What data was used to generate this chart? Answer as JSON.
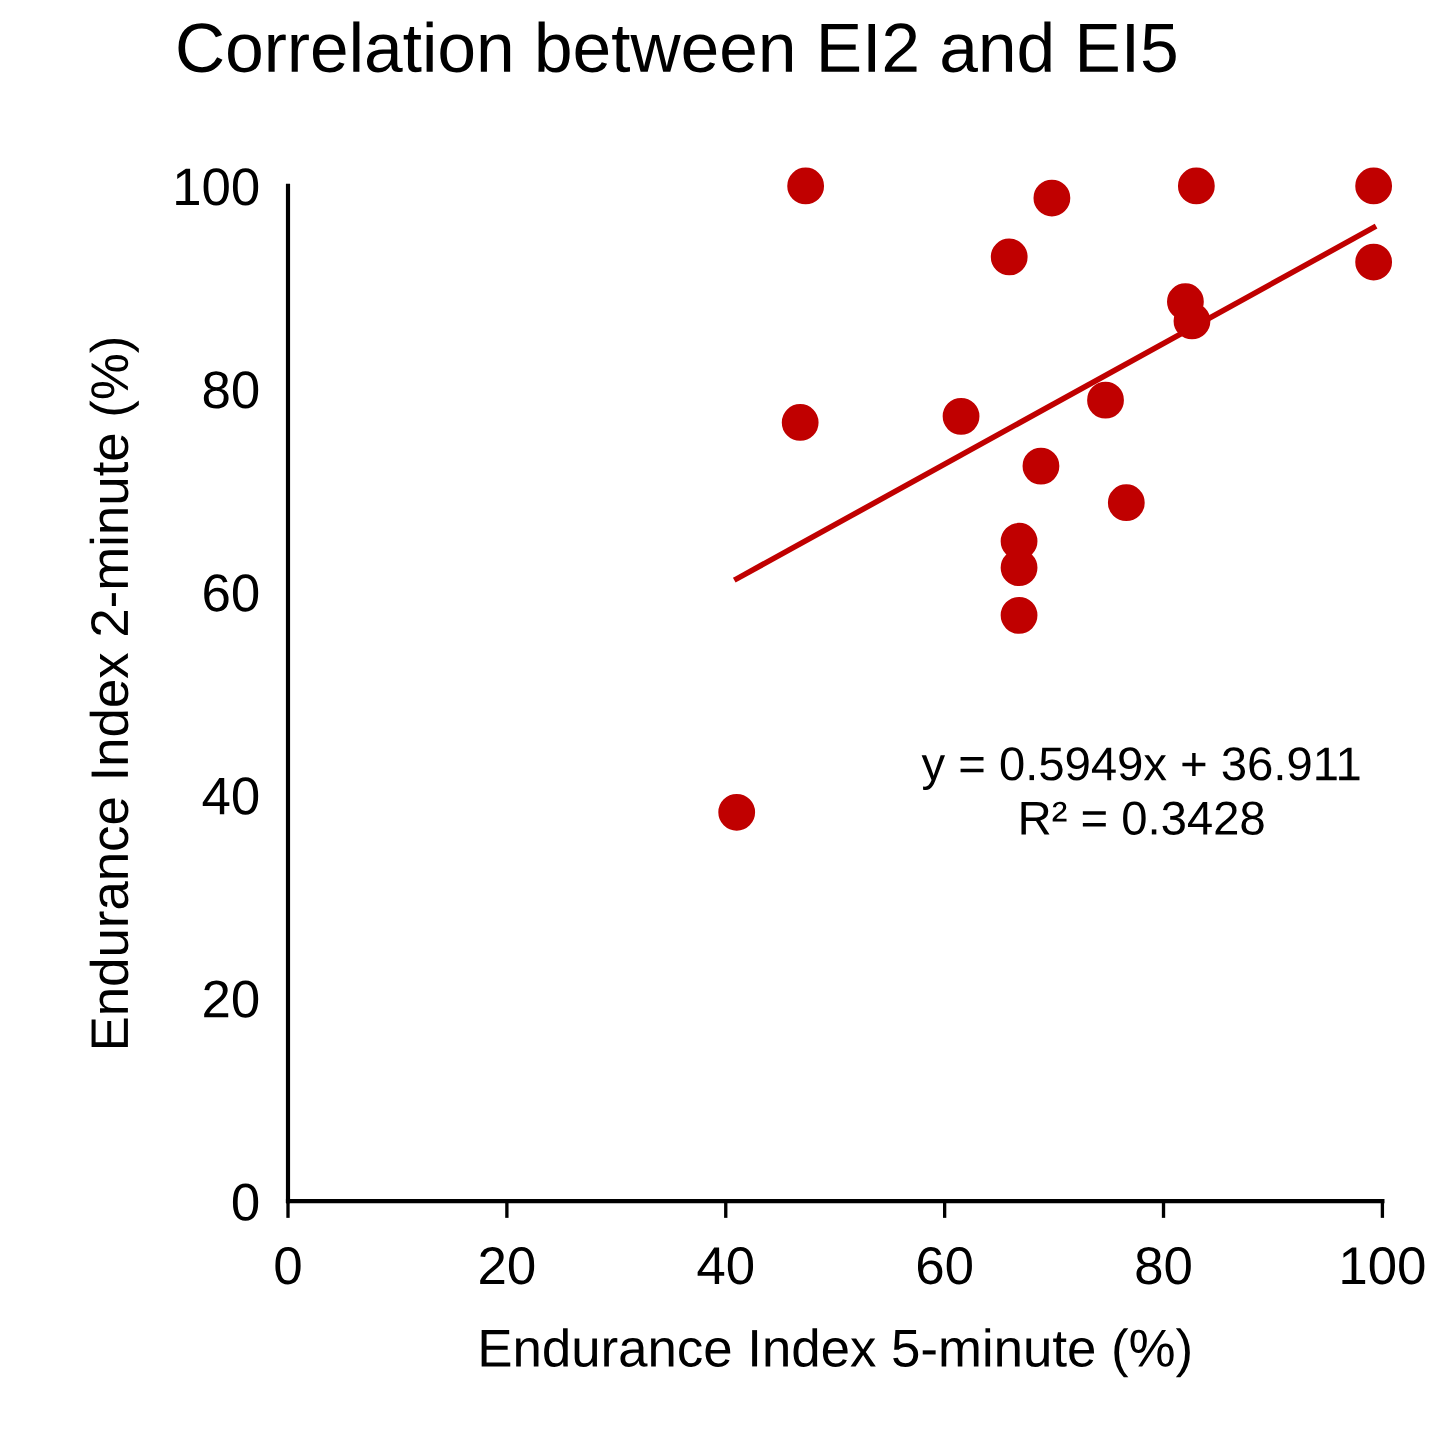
{
  "chart_data": {
    "type": "scatter",
    "title": "Correlation between EI2 and EI5",
    "xlabel": "Endurance Index 5-minute (%)",
    "ylabel": "Endurance Index 2-minute (%)",
    "xlim": [
      0,
      100
    ],
    "ylim": [
      0,
      100
    ],
    "xticks": [
      0,
      20,
      40,
      60,
      80,
      100
    ],
    "yticks": [
      0,
      20,
      40,
      60,
      80,
      100
    ],
    "grid": false,
    "series": [
      {
        "color": "#c00000",
        "marker": "circle",
        "x": [
          47.3,
          69.8,
          83.0,
          99.2,
          65.9,
          99.2,
          82.0,
          82.6,
          74.7,
          46.8,
          61.5,
          68.8,
          76.6,
          66.8,
          66.8,
          66.8,
          41.0
        ],
        "values": [
          100,
          98.8,
          100,
          100,
          93.0,
          92.5,
          88.6,
          86.7,
          78.9,
          76.7,
          77.3,
          72.4,
          68.8,
          65.0,
          62.4,
          57.7,
          38.3
        ]
      },
      {
        "type": "line",
        "color": "#c00000",
        "x": [
          41.0,
          99.2
        ],
        "values": [
          61.3,
          95.9
        ]
      }
    ],
    "annotations": [
      "y = 0.5949x + 36.911\nR² = 0.3428"
    ]
  }
}
